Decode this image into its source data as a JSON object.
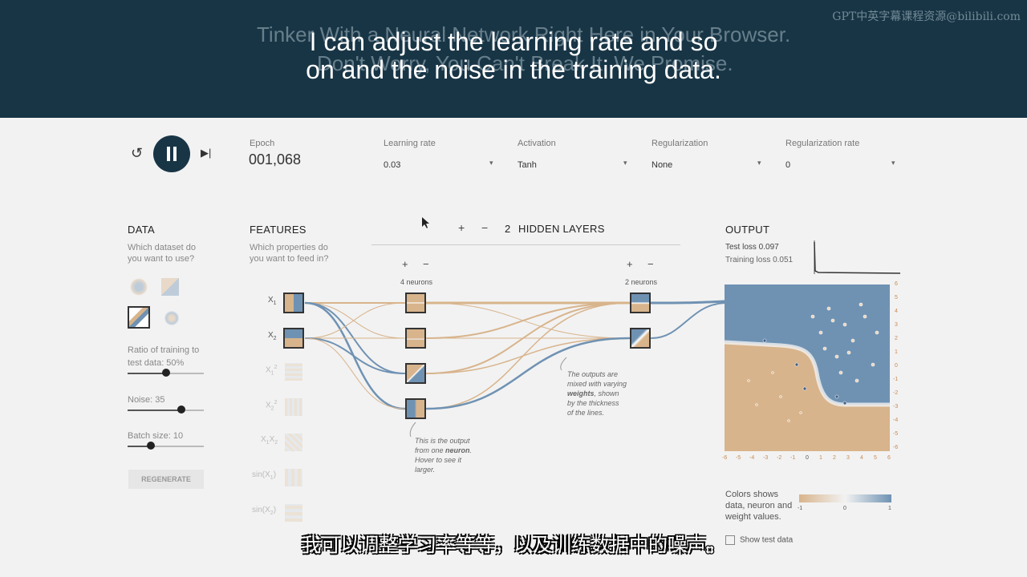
{
  "banner": {
    "ghost_line1": "Tinker With a Neural Network Right Here in Your Browser.",
    "ghost_line2": "Don't Worry, You Can't Break It. We Promise.",
    "subtitle_line1": "I can adjust the learning rate and so",
    "subtitle_line2": "on and the noise in the training data.",
    "watermark": "GPT中英字幕课程资源@bilibili.com"
  },
  "controls": {
    "epoch_label": "Epoch",
    "epoch_value": "001,068",
    "learning_rate_label": "Learning rate",
    "learning_rate_value": "0.03",
    "activation_label": "Activation",
    "activation_value": "Tanh",
    "regularization_label": "Regularization",
    "regularization_value": "None",
    "reg_rate_label": "Regularization rate",
    "reg_rate_value": "0"
  },
  "data_panel": {
    "title": "DATA",
    "question_1": "Which dataset do",
    "question_2": "you want to use?",
    "ratio_label_1": "Ratio of training to",
    "ratio_label_2": "test data:  50%",
    "ratio_value": 0.5,
    "noise_label": "Noise:  35",
    "noise_value": 0.7,
    "batch_label": "Batch size:  10",
    "batch_value": 0.3,
    "regenerate": "REGENERATE"
  },
  "features_panel": {
    "title": "FEATURES",
    "question_1": "Which properties do",
    "question_2": "you want to feed in?",
    "items": [
      {
        "base": "X",
        "sub": "1",
        "sup": ""
      },
      {
        "base": "X",
        "sub": "2",
        "sup": ""
      },
      {
        "base": "X",
        "sub": "1",
        "sup": "2"
      },
      {
        "base": "X",
        "sub": "2",
        "sup": "2"
      },
      {
        "base": "X",
        "sub": "1",
        "sup": "",
        "base2": "X",
        "sub2": "2"
      },
      {
        "base": "sin(X",
        "sub": "1",
        "sup": "",
        "tail": ")"
      },
      {
        "base": "sin(X",
        "sub": "2",
        "sup": "",
        "tail": ")"
      }
    ]
  },
  "network": {
    "add": "+",
    "remove": "−",
    "hidden_count": "2",
    "hidden_label": "HIDDEN LAYERS",
    "layer1_neurons": "4 neurons",
    "layer2_neurons": "2 neurons",
    "note_neuron_1": "This is the output",
    "note_neuron_2": "from one",
    "note_neuron_bold": "neuron",
    "note_neuron_3": ".",
    "note_neuron_4": "Hover to see it",
    "note_neuron_5": "larger.",
    "note_weights_1": "The outputs are",
    "note_weights_2": "mixed with varying",
    "note_weights_bold": "weights",
    "note_weights_3": ", shown",
    "note_weights_4": "by the thickness",
    "note_weights_5": "of the lines."
  },
  "output_panel": {
    "title": "OUTPUT",
    "test_loss": "Test loss 0.097",
    "training_loss": "Training loss 0.051",
    "legend_1": "Colors shows",
    "legend_2": "data, neuron and",
    "legend_3": "weight values.",
    "legend_min": "-1",
    "legend_mid": "0",
    "legend_max": "1",
    "show_test": "Show test data",
    "y_ticks": [
      "6",
      "5",
      "4",
      "3",
      "2",
      "1",
      "0",
      "-1",
      "-2",
      "-3",
      "-4",
      "-5",
      "-6"
    ],
    "x_ticks": [
      "-6",
      "-5",
      "-4",
      "-3",
      "-2",
      "-1",
      "0",
      "1",
      "2",
      "3",
      "4",
      "5",
      "6"
    ]
  },
  "subtitle_zh": "我可以调整学习率等等，以及训练数据中的噪声。",
  "colors": {
    "orange": "#d8b48c",
    "blue": "#6f92b3",
    "banner": "#183546"
  }
}
